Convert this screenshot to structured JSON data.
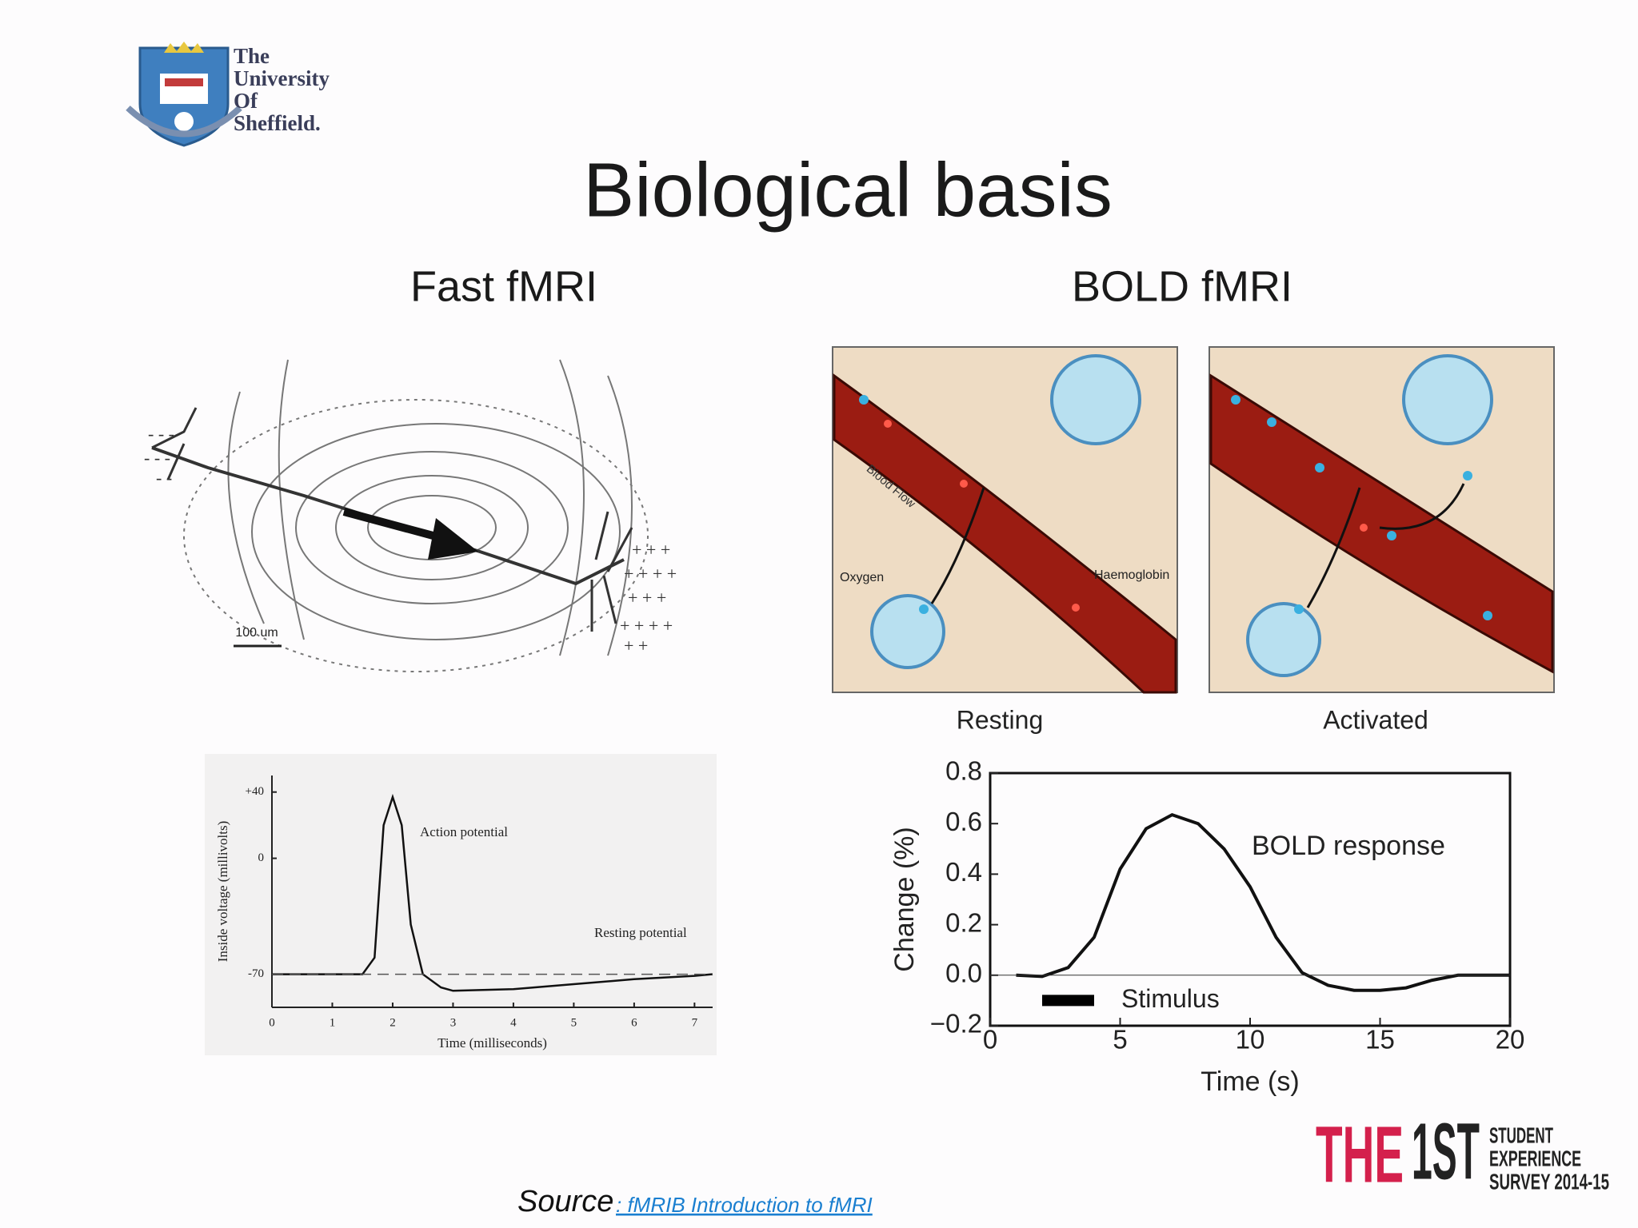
{
  "header": {
    "logo_text": [
      "The",
      "University",
      "Of",
      "Sheffield."
    ]
  },
  "title": "Biological basis",
  "columns": [
    {
      "heading": "Fast fMRI"
    },
    {
      "heading": "BOLD fMRI"
    }
  ],
  "neuron_figure": {
    "scale_label": "100 um"
  },
  "action_potential_chart": {
    "type": "line",
    "y_label": "Inside voltage (millivolts)",
    "x_label": "Time (milliseconds)",
    "annotations": [
      "Action potential",
      "Resting potential"
    ],
    "x": [
      0,
      1,
      1.5,
      1.7,
      1.85,
      2,
      2.15,
      2.3,
      2.5,
      2.8,
      3,
      4,
      5,
      6,
      7,
      7.3
    ],
    "values": [
      -70,
      -70,
      -70,
      -60,
      20,
      37,
      20,
      -40,
      -70,
      -78,
      -80,
      -79,
      -76,
      -73,
      -71,
      -70
    ],
    "resting_level": -70,
    "xlim": [
      0,
      7.3
    ],
    "ylim": [
      -90,
      50
    ],
    "xticks": [
      0,
      1,
      2,
      3,
      4,
      5,
      6,
      7
    ],
    "yticks": [
      {
        "value": 40,
        "label": "+40"
      },
      0,
      -70
    ]
  },
  "bold_panels": {
    "labels": [
      "Blood Flow",
      "Oxygen",
      "Haemoglobin"
    ],
    "captions": [
      "Resting",
      "Activated"
    ]
  },
  "bold_chart": {
    "type": "line",
    "y_label": "Change (%)",
    "x_label": "Time (s)",
    "annotation": "BOLD response",
    "stimulus_label": "Stimulus",
    "stimulus_x": [
      2,
      4
    ],
    "x": [
      1,
      2,
      3,
      4,
      5,
      6,
      7,
      8,
      9,
      10,
      11,
      12,
      13,
      14,
      15,
      16,
      17,
      18,
      19,
      20
    ],
    "values": [
      0,
      -0.005,
      0.03,
      0.15,
      0.42,
      0.58,
      0.635,
      0.6,
      0.5,
      0.35,
      0.15,
      0.01,
      -0.04,
      -0.06,
      -0.06,
      -0.05,
      -0.02,
      0,
      0,
      0
    ],
    "xlim": [
      0,
      20
    ],
    "ylim": [
      -0.2,
      0.8
    ],
    "xticks": [
      0,
      5,
      10,
      15,
      20
    ],
    "yticks": [
      0.8,
      0.6,
      0.4,
      0.2,
      {
        "value": 0,
        "label": "0.0"
      },
      {
        "value": -0.2,
        "label": "−0.2"
      }
    ]
  },
  "source": {
    "label": "Source",
    "link_text": ": fMRIB Introduction to fMRI"
  },
  "badge": {
    "big": [
      "THE",
      "1ST"
    ],
    "small": [
      "STUDENT",
      "EXPERIENCE",
      "SURVEY 2014-15"
    ]
  }
}
